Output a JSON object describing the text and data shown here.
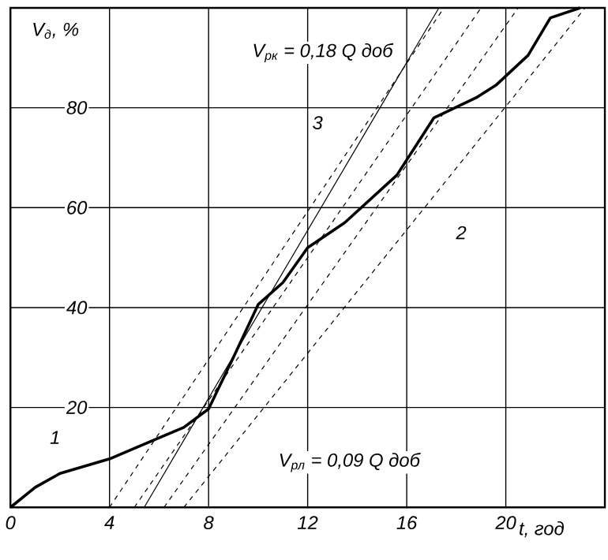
{
  "chart_data": {
    "type": "line",
    "xlabel": "t, год",
    "ylabel": "V$_{д}$, %",
    "xlim": [
      0,
      24
    ],
    "ylim": [
      0,
      100
    ],
    "xticks": [
      0,
      4,
      8,
      12,
      16,
      20
    ],
    "yticks": [
      20,
      40,
      60,
      80
    ],
    "grid": true,
    "marker": "none",
    "series": [
      {
        "color": "#000000",
        "line_style": "solid",
        "x": [
          0,
          1,
          2,
          4,
          6,
          7,
          8,
          9,
          10,
          11,
          12,
          13.5,
          15.6,
          17.1,
          18.8,
          19.6,
          20.9,
          21.8,
          23
        ],
        "values": [
          0,
          4,
          6.8,
          9.7,
          13.9,
          16,
          19.7,
          30,
          40.6,
          45,
          52,
          57,
          66.5,
          78,
          82,
          84.5,
          90.5,
          98,
          100
        ]
      },
      {
        "color": "#000000",
        "line_style": "solid",
        "x": [
          5.4,
          17.3
        ],
        "values": [
          0,
          100
        ]
      },
      {
        "color": "#000000",
        "line_style": "dashed",
        "x": [
          4,
          17.5
        ],
        "values": [
          0,
          100
        ]
      },
      {
        "color": "#000000",
        "line_style": "dashed",
        "x": [
          5,
          19
        ],
        "values": [
          0,
          100
        ]
      },
      {
        "color": "#000000",
        "line_style": "dashed",
        "x": [
          6.2,
          20.5
        ],
        "values": [
          0,
          100
        ]
      },
      {
        "color": "#000000",
        "line_style": "dashed",
        "x": [
          7,
          23.2
        ],
        "values": [
          0,
          100
        ]
      }
    ],
    "annotations": [
      {
        "text": "1",
        "x": 1.8,
        "y": 14
      },
      {
        "text": "2",
        "x": 18.2,
        "y": 55
      },
      {
        "text": "3",
        "x": 12.4,
        "y": 77
      },
      "V$_{рк}$ = 0,18 Q доб",
      "V$_{рл}$ = 0,09 Q доб"
    ]
  }
}
